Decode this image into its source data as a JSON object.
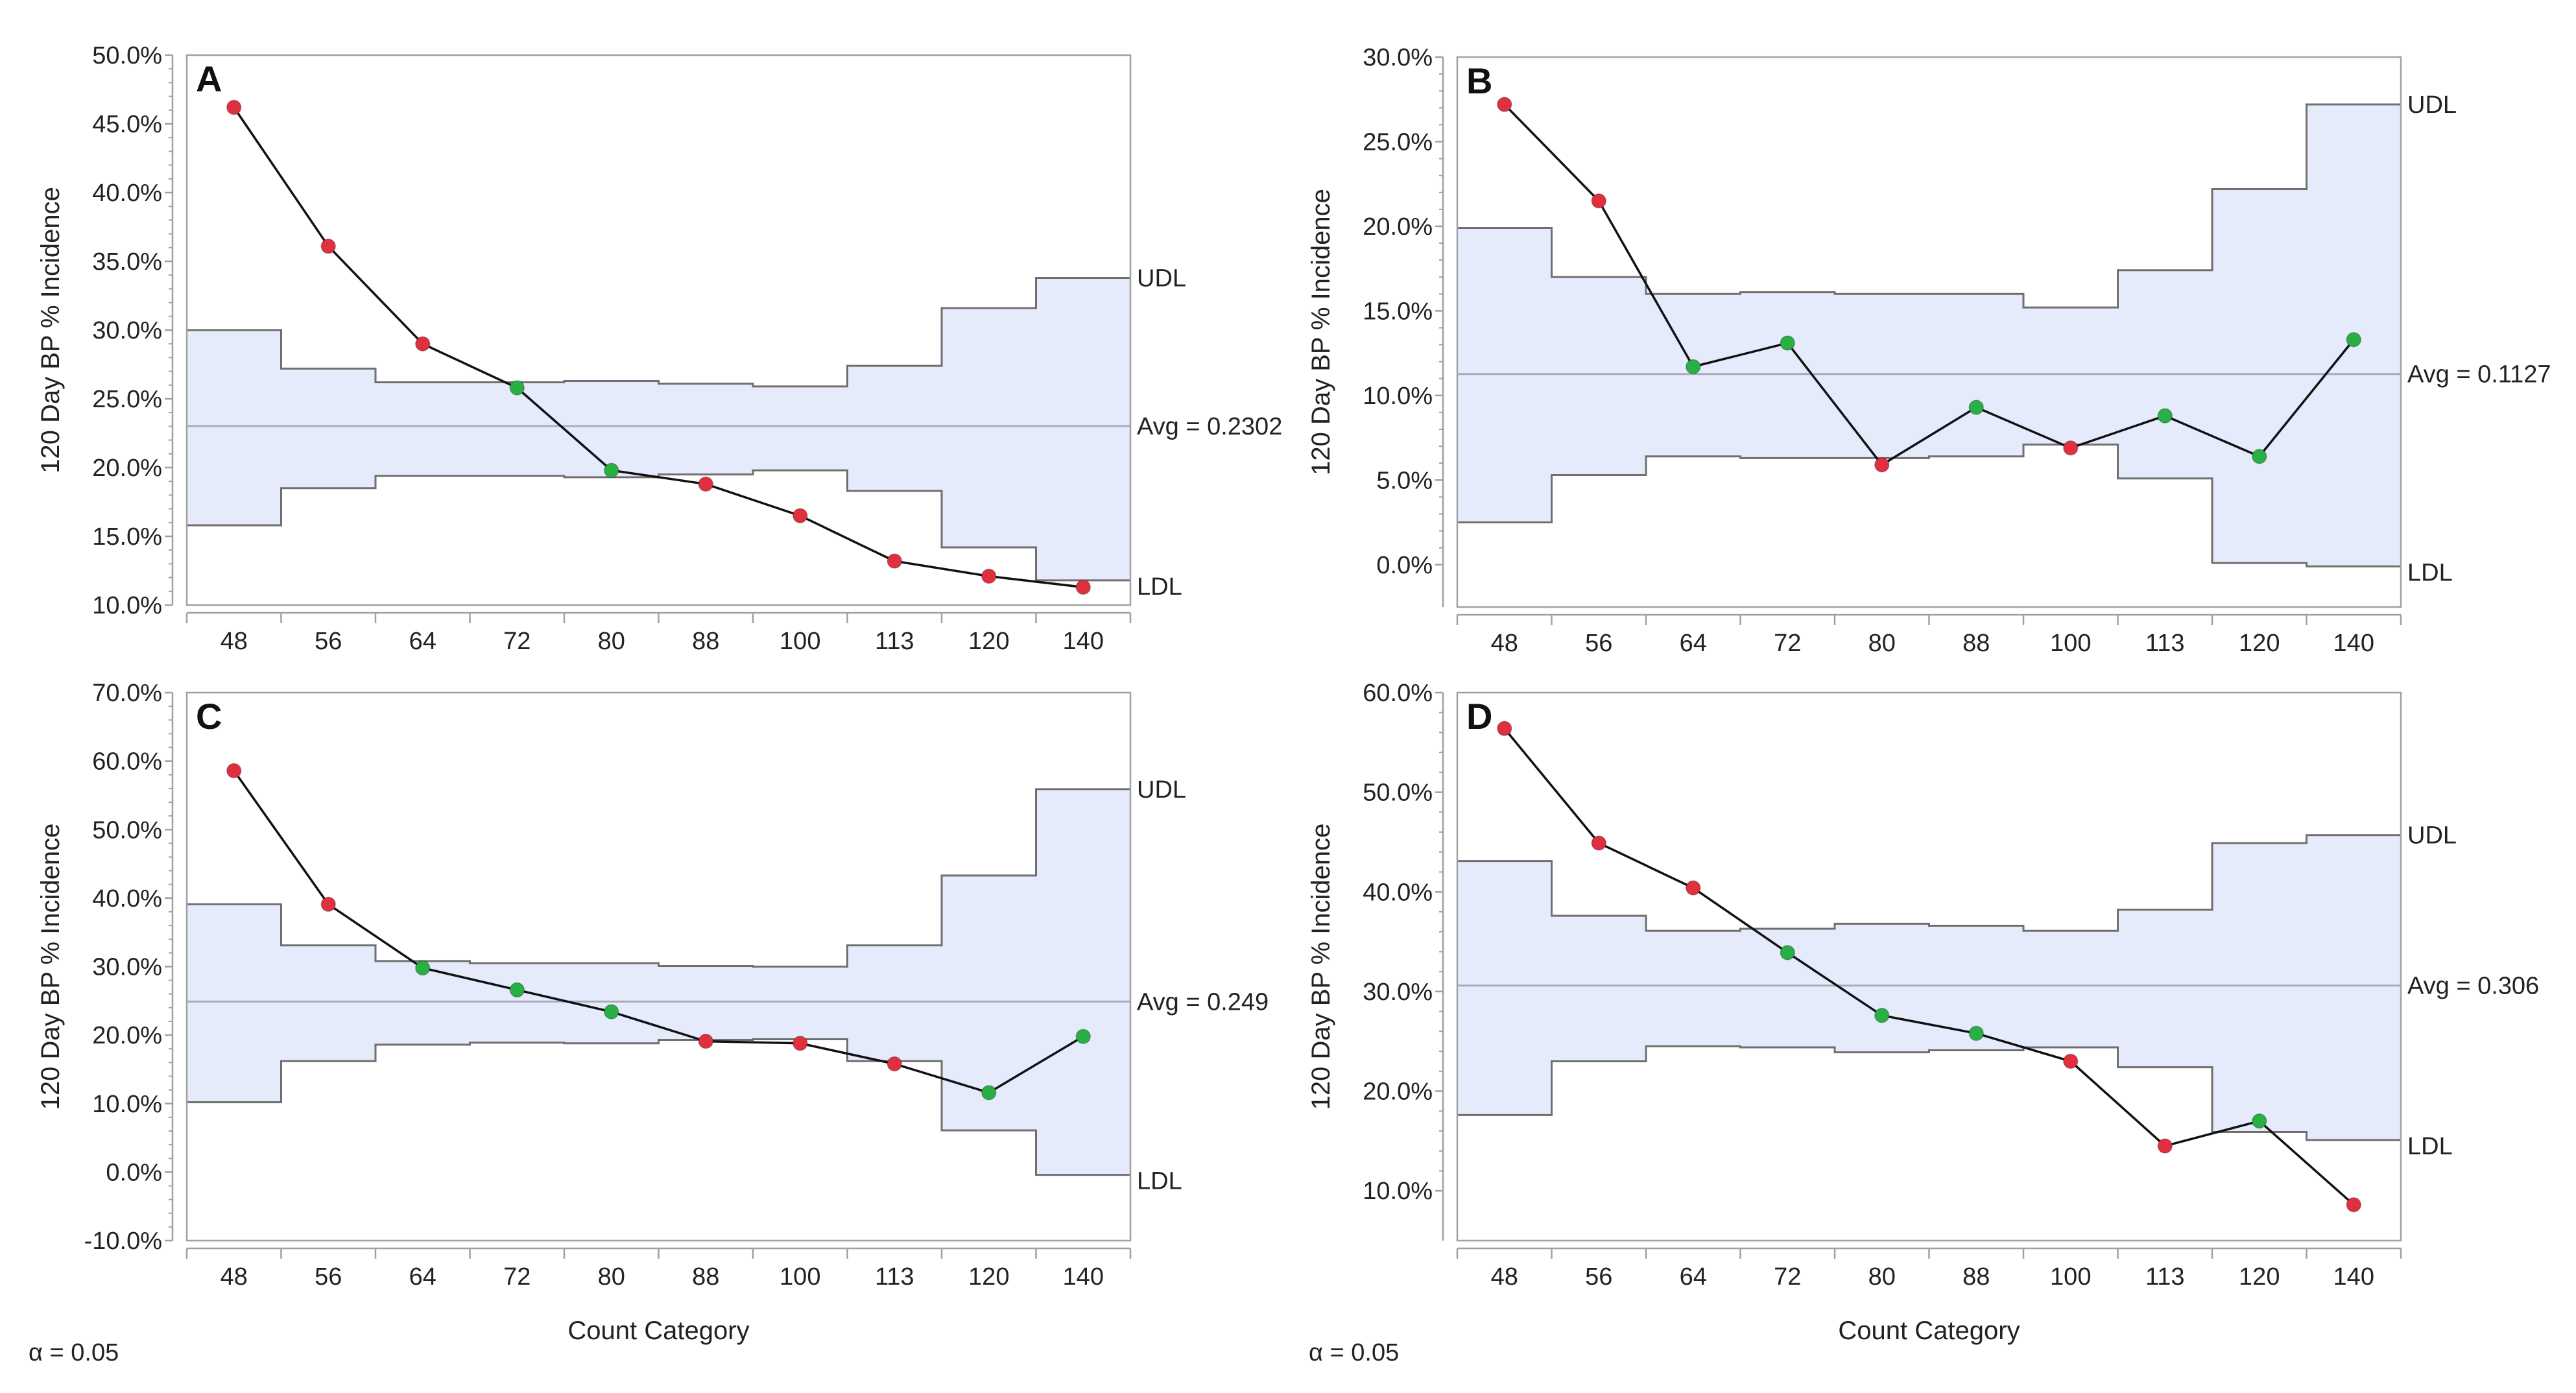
{
  "figure": {
    "x_categories": [
      "48",
      "56",
      "64",
      "72",
      "80",
      "88",
      "100",
      "113",
      "120",
      "140"
    ],
    "xlabel": "Count Category",
    "ylabel": "120 Day BP % Incidence",
    "alpha_labels": [
      "α = 0.05",
      "α = 0.05"
    ],
    "colors": {
      "band_fill": "#e6ebfc",
      "band_edge": "#6f6f6f",
      "avg_line": "#a8acba",
      "series_line": "#111111",
      "point_out": "#e03040",
      "point_in": "#28b044",
      "frame": "#a0a0a0"
    }
  },
  "chart_data": [
    {
      "type": "line",
      "title": "A",
      "categories": [
        "48",
        "56",
        "64",
        "72",
        "80",
        "88",
        "100",
        "113",
        "120",
        "140"
      ],
      "series": [
        {
          "name": "120 Day BP % Incidence",
          "values": [
            46.2,
            36.1,
            29.0,
            25.8,
            19.8,
            18.8,
            16.5,
            13.2,
            12.1,
            11.3
          ]
        },
        {
          "name": "UDL",
          "values": [
            30.0,
            27.2,
            26.2,
            26.2,
            26.3,
            26.1,
            25.9,
            27.4,
            31.6,
            33.8
          ]
        },
        {
          "name": "LDL",
          "values": [
            15.8,
            18.5,
            19.4,
            19.4,
            19.3,
            19.5,
            19.8,
            18.3,
            14.2,
            11.8
          ]
        }
      ],
      "status": [
        "out",
        "out",
        "out",
        "in",
        "in",
        "out",
        "out",
        "out",
        "out",
        "out"
      ],
      "avg": 23.02,
      "labels": {
        "udl": "UDL",
        "ldl": "LDL",
        "avg": "Avg = 0.2302"
      },
      "yticks": [
        "10.0%",
        "15.0%",
        "20.0%",
        "25.0%",
        "30.0%",
        "35.0%",
        "40.0%",
        "45.0%",
        "50.0%"
      ],
      "ylim": [
        10,
        50
      ],
      "show_xlabel": false
    },
    {
      "type": "line",
      "title": "B",
      "categories": [
        "48",
        "56",
        "64",
        "72",
        "80",
        "88",
        "100",
        "113",
        "120",
        "140"
      ],
      "series": [
        {
          "name": "120 Day BP % Incidence",
          "values": [
            27.2,
            21.5,
            11.7,
            13.1,
            5.9,
            9.3,
            6.9,
            8.8,
            6.4,
            13.3
          ]
        },
        {
          "name": "UDL",
          "values": [
            19.9,
            17.0,
            16.0,
            16.1,
            16.0,
            16.0,
            15.2,
            17.4,
            22.2,
            27.2
          ]
        },
        {
          "name": "LDL",
          "values": [
            2.5,
            5.3,
            6.4,
            6.3,
            6.3,
            6.4,
            7.1,
            5.1,
            0.1,
            -0.1
          ]
        }
      ],
      "status": [
        "out",
        "out",
        "in",
        "in",
        "out",
        "in",
        "out",
        "in",
        "in",
        "in"
      ],
      "avg": 11.27,
      "labels": {
        "udl": "UDL",
        "ldl": "LDL",
        "avg": "Avg = 0.1127"
      },
      "yticks": [
        "0.0%",
        "5.0%",
        "10.0%",
        "15.0%",
        "20.0%",
        "25.0%",
        "30.0%"
      ],
      "ylim": [
        -2.5,
        30
      ],
      "show_xlabel": false
    },
    {
      "type": "line",
      "title": "C",
      "categories": [
        "48",
        "56",
        "64",
        "72",
        "80",
        "88",
        "100",
        "113",
        "120",
        "140"
      ],
      "series": [
        {
          "name": "120 Day BP % Incidence",
          "values": [
            58.6,
            39.1,
            29.8,
            26.6,
            23.4,
            19.1,
            18.8,
            15.8,
            11.6,
            19.8
          ]
        },
        {
          "name": "UDL",
          "values": [
            39.1,
            33.1,
            30.8,
            30.5,
            30.5,
            30.1,
            30.0,
            33.1,
            43.3,
            55.9
          ]
        },
        {
          "name": "LDL",
          "values": [
            10.2,
            16.2,
            18.6,
            18.9,
            18.8,
            19.3,
            19.4,
            16.2,
            6.1,
            -0.4
          ]
        }
      ],
      "status": [
        "out",
        "out",
        "in",
        "in",
        "in",
        "out",
        "out",
        "out",
        "in",
        "in"
      ],
      "avg": 24.9,
      "labels": {
        "udl": "UDL",
        "ldl": "LDL",
        "avg": "Avg = 0.249"
      },
      "yticks": [
        "-10.0%",
        "0.0%",
        "10.0%",
        "20.0%",
        "30.0%",
        "40.0%",
        "50.0%",
        "60.0%",
        "70.0%"
      ],
      "ylim": [
        -10,
        70
      ],
      "show_xlabel": true
    },
    {
      "type": "line",
      "title": "D",
      "categories": [
        "48",
        "56",
        "64",
        "72",
        "80",
        "88",
        "100",
        "113",
        "120",
        "140"
      ],
      "series": [
        {
          "name": "120 Day BP % Incidence",
          "values": [
            56.4,
            44.9,
            40.4,
            33.9,
            27.6,
            25.8,
            23.0,
            14.5,
            17.0,
            8.6
          ]
        },
        {
          "name": "UDL",
          "values": [
            43.1,
            37.6,
            36.1,
            36.3,
            36.8,
            36.6,
            36.1,
            38.2,
            44.9,
            45.7
          ]
        },
        {
          "name": "LDL",
          "values": [
            17.6,
            23.0,
            24.5,
            24.4,
            23.9,
            24.1,
            24.4,
            22.4,
            15.9,
            15.1
          ]
        }
      ],
      "status": [
        "out",
        "out",
        "out",
        "in",
        "in",
        "in",
        "out",
        "out",
        "in",
        "out"
      ],
      "avg": 30.6,
      "labels": {
        "udl": "UDL",
        "ldl": "LDL",
        "avg": "Avg = 0.306"
      },
      "yticks": [
        "10.0%",
        "20.0%",
        "30.0%",
        "40.0%",
        "50.0%",
        "60.0%"
      ],
      "ylim": [
        5,
        60
      ],
      "show_xlabel": true
    }
  ]
}
